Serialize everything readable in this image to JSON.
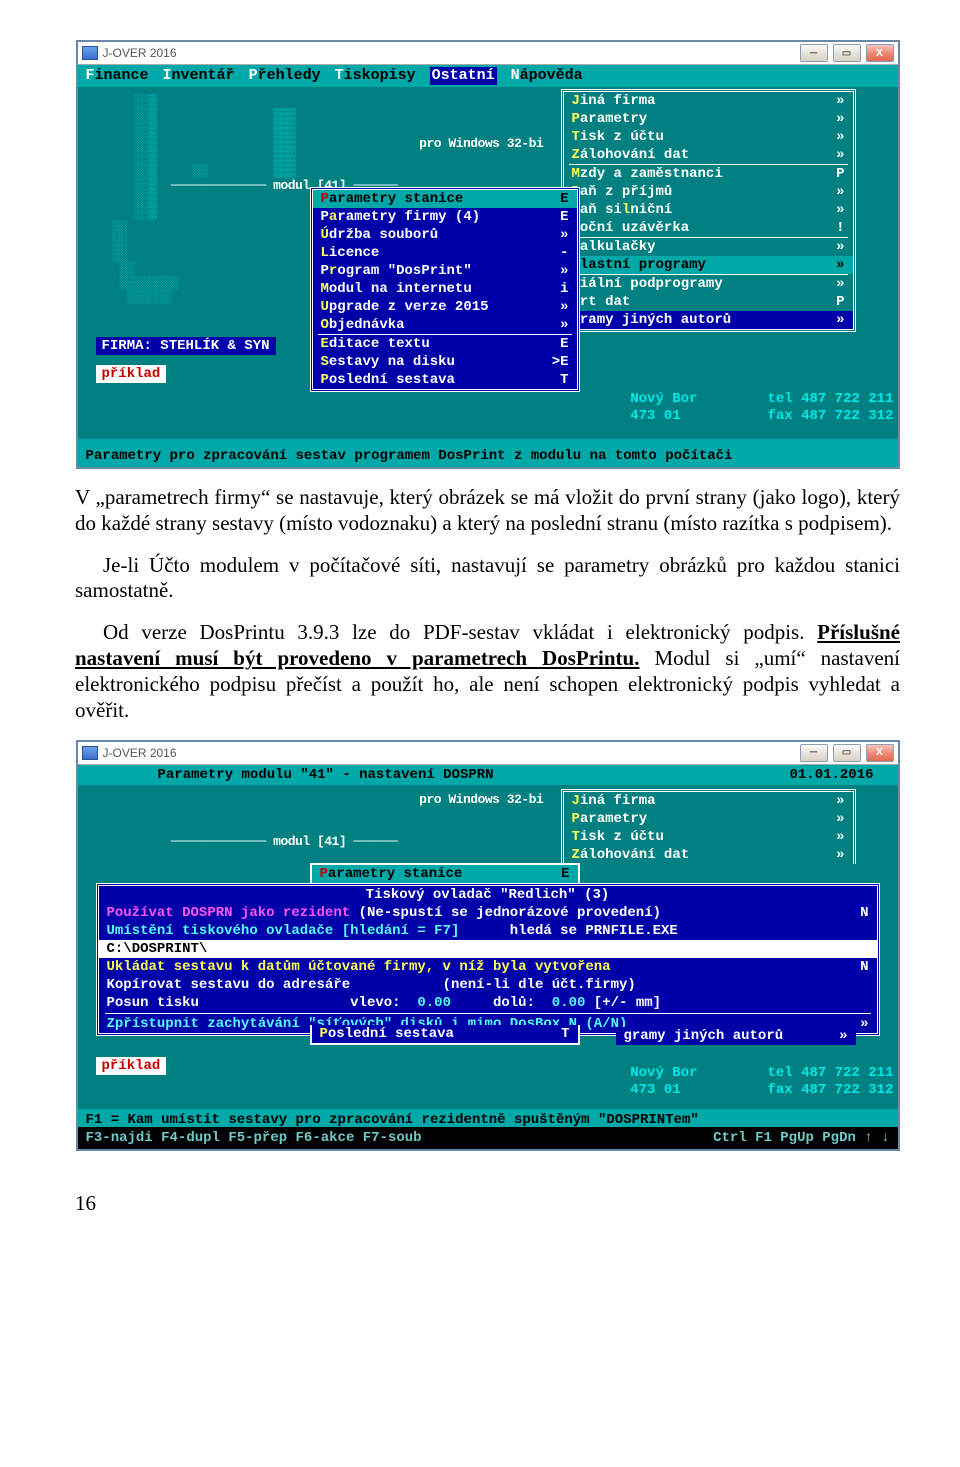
{
  "colors": {
    "teal_bg": "#008080",
    "teal_lt": "#00a8a8",
    "blue_dk": "#0000a8",
    "yellow": "#ffff54",
    "cyan": "#54fcfc",
    "magenta": "#fc54fc",
    "red": "#c80000"
  },
  "win1": {
    "title": "J-OVER 2016",
    "main_menu": [
      [
        "F",
        "inance"
      ],
      [
        "I",
        "nventář"
      ],
      [
        "P",
        "řehledy"
      ],
      [
        "T",
        "iskopisy"
      ],
      [
        "O",
        "statní"
      ],
      [
        "N",
        "ápověda"
      ]
    ],
    "selected_menu": 4,
    "ascii_subtitle": "              pro Windows 32-bi",
    "ascii_mod": "───────────── modul [41] ──────",
    "submenu_left": {
      "title": "Parametry stanice",
      "items": [
        {
          "l": "Parametry stanice",
          "k": "P",
          "r": "E",
          "hl": true
        },
        {
          "l": "Parametry firmy (4)",
          "k": "P",
          "r": "E",
          "sub": "a"
        },
        {
          "l": "Údržba souborů",
          "k": "Ú",
          "r": "»"
        },
        {
          "l": "Licence",
          "k": "L",
          "r": "-"
        },
        {
          "l": "Program \"DosPrint\"",
          "k": "P",
          "r": "»",
          "sub": "r"
        },
        {
          "l": "Modul na internetu",
          "k": "M",
          "r": "i"
        },
        {
          "l": "Upgrade z verze 2015",
          "k": "U",
          "r": "»"
        },
        {
          "l": "Objednávka",
          "k": "O",
          "r": "»"
        },
        {
          "sep": true
        },
        {
          "l": "Editace textu",
          "k": "E",
          "r": "E"
        },
        {
          "l": "Sestavy na disku",
          "k": "S",
          "r": ">E"
        },
        {
          "l": "Poslední sestava",
          "k": "P",
          "r": "T"
        }
      ]
    },
    "submenu_right": {
      "items1": [
        {
          "l": "Jiná firma",
          "k": "J",
          "r": "»"
        },
        {
          "l": "Parametry",
          "k": "P",
          "r": "»"
        },
        {
          "l": "Tisk z účtu",
          "k": "T",
          "r": "»"
        },
        {
          "l": "Zálohování dat",
          "k": "Z",
          "r": "»"
        }
      ],
      "items2": [
        {
          "l": "Mzdy a zaměstnanci",
          "k": "M",
          "r": "P"
        },
        {
          "l": "Daň z příjmů",
          "k": "D",
          "r": "»"
        },
        {
          "l": "Daň silniční",
          "k": "D",
          "r": "»",
          "sub": "l"
        },
        {
          "l": "Roční uzávěrka",
          "k": "R",
          "r": "!"
        }
      ],
      "items3": [
        {
          "l": "Kalkulačky",
          "k": "K",
          "r": "»"
        },
        {
          "l": "Vlastní programy",
          "k": "V",
          "r": "»",
          "hl": true
        }
      ],
      "items4": [
        {
          "l": "ciální podprogramy",
          "r": "»"
        },
        {
          "l": "ort dat",
          "r": "P"
        },
        {
          "l": "gramy jiných autorů",
          "r": "»",
          "hl": true
        }
      ]
    },
    "firm_label": "FIRMA: STEHLÍK & SYN",
    "example_label": "příklad",
    "addr_l": [
      "Nový Bor",
      "473 01"
    ],
    "addr_r": [
      "tel 487 722 211",
      "fax 487 722 312"
    ],
    "statusbar": "Parametry pro zpracování sestav programem DosPrint z modulu na tomto počítači"
  },
  "paragraphs": [
    "V „parametrech firmy“ se nastavuje, který obrázek se má vložit do první strany (jako logo), který do každé strany sestavy (místo vodoznaku) a který na poslední stranu (místo razítka s podpisem).",
    "Je-li  Účto modulem v počítačové síti, nastavují se parametry obrázků pro každou stanici samostatně.",
    "Od verze DosPrintu 3.9.3 lze do PDF-sestav vkládat i elektronický podpis. <b><u>Příslušné nastavení musí být provedeno v parametrech DosPrintu.</u></b> Modul si „umí“ nastavení elektronického podpisu přečíst a použít ho, ale není schopen elektronický podpis vyhledat a ověřit."
  ],
  "win2": {
    "title": "J-OVER 2016",
    "top_title": "Parametry modulu \"41\" - nastavení DOSPRN",
    "top_date": "01.01.2016",
    "submenu_right": [
      {
        "l": "Jiná firma",
        "k": "J",
        "r": "»"
      },
      {
        "l": "Parametry",
        "k": "P",
        "r": "»"
      },
      {
        "l": "Tisk z účtu",
        "k": "T",
        "r": "»"
      },
      {
        "l": "Zálohování dat",
        "k": "Z",
        "r": "»"
      }
    ],
    "param_line": {
      "l": "Parametry stanice",
      "r": "E"
    },
    "box_title": "Tiskový ovladač \"Redlich\" (3)",
    "lines": [
      {
        "pre": "Používat DOSPRN jako rezident ",
        "pink": true,
        "mid": "(Ne-spustí se jednorázové provedení) ",
        "val": "N"
      },
      {
        "pre": "Umístění tiskového ovladače [hledání = F7]",
        "cy": true,
        "mid": "      hledá se PRNFILE.EXE"
      },
      {
        "path": "C:\\DOSPRINT\\"
      },
      {
        "pre": "Ukládat sestavu k datům účtované firmy, v níž byla vytvořena",
        "ylw": true,
        "val": "N",
        "gap": "      "
      },
      {
        "pre": "Kopírovat sestavu do adresáře           ",
        "mid": "(není-li dle účt.firmy)"
      },
      {
        "pre": "Posun tisku                  vlevo:  ",
        "v1": "0.00",
        "mid": "     dolů:  ",
        "v2": "0.00",
        "suf": " [+/- mm]"
      }
    ],
    "line_net": "Zpřístupnit zachytávání \"síťových\" disků i mimo DosBox N (A/N)",
    "posledni": {
      "l": "Poslední sestava",
      "r": "T"
    },
    "gramy": {
      "l": "gramy jiných autorů",
      "r": "»"
    },
    "right_bits": [
      "P",
      "»",
      "»",
      "!",
      "»",
      "»",
      "»",
      "P"
    ],
    "addr_l": [
      "Nový Bor",
      "473 01"
    ],
    "addr_r": [
      "tel 487 722 211",
      "fax 487 722 312"
    ],
    "status1": "F1 = Kam umístit sestavy pro zpracování rezidentně spuštěným \"DOSPRINTem\"",
    "status2_l": "F3-najdi F4-dupl F5-přep F6-akce F7-soub",
    "status2_r": "Ctrl F1 PgUp PgDn ↑ ↓"
  },
  "pagenum": "16"
}
